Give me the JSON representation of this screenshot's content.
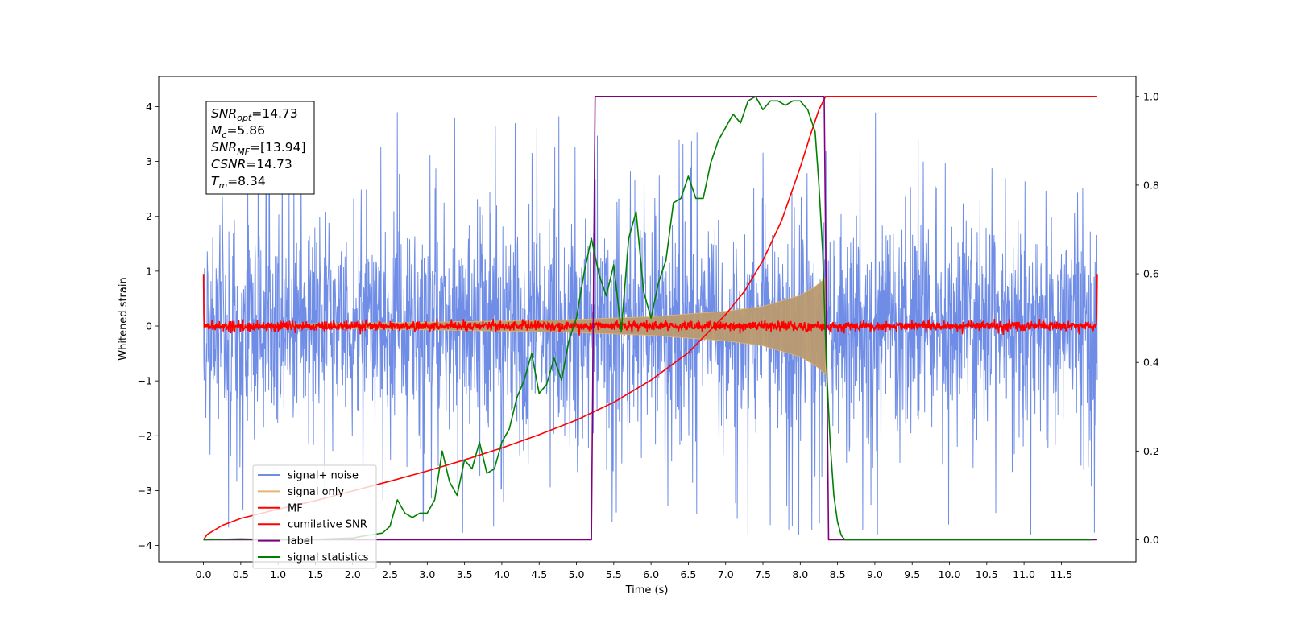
{
  "chart_data": {
    "type": "line",
    "title": "",
    "xlabel": "Time (s)",
    "ylabel": "Whitened strain",
    "ylabel_right": "",
    "xlim": [
      -0.6,
      12.5
    ],
    "ylim": [
      -4.3,
      4.55
    ],
    "ylim_right": [
      -0.05,
      1.045
    ],
    "x_ticks": [
      0.0,
      0.5,
      1.0,
      1.5,
      2.0,
      2.5,
      3.0,
      3.5,
      4.0,
      4.5,
      5.0,
      5.5,
      6.0,
      6.5,
      7.0,
      7.5,
      8.0,
      8.5,
      9.0,
      9.5,
      10.0,
      10.5,
      11.0,
      11.5
    ],
    "x_tick_labels": [
      "0.0",
      "0.5",
      "1.0",
      "1.5",
      "2.0",
      "2.5",
      "3.0",
      "3.5",
      "4.0",
      "4.5",
      "5.0",
      "5.5",
      "6.0",
      "6.5",
      "7.0",
      "7.5",
      "8.0",
      "8.5",
      "9.0",
      "9.5",
      "10.0",
      "10.5",
      "11.0",
      "11.5"
    ],
    "y_ticks": [
      -4,
      -3,
      -2,
      -1,
      0,
      1,
      2,
      3,
      4
    ],
    "y_tick_labels": [
      "−4",
      "−3",
      "−2",
      "−1",
      "0",
      "1",
      "2",
      "3",
      "4"
    ],
    "y_right_ticks": [
      0.0,
      0.2,
      0.4,
      0.6,
      0.8,
      1.0
    ],
    "y_right_tick_labels": [
      "0.0",
      "0.2",
      "0.4",
      "0.6",
      "0.8",
      "1.0"
    ],
    "grid": false,
    "legend_position": "lower-left",
    "series": [
      {
        "name": "signal+ noise",
        "axis": "left",
        "color": "#6f8de6",
        "kind": "noise",
        "x_range": [
          0.0,
          11.98
        ],
        "approx_amplitude": 1.3,
        "approx_peak": 4.17
      },
      {
        "name": "signal only",
        "axis": "left",
        "color": "#e5b46e",
        "kind": "chirp",
        "x_range": [
          0.0,
          8.34
        ],
        "envelope": {
          "x": [
            0.0,
            2.0,
            4.0,
            5.0,
            6.0,
            7.0,
            7.5,
            8.0,
            8.2,
            8.34
          ],
          "y": [
            0.03,
            0.05,
            0.09,
            0.12,
            0.17,
            0.27,
            0.36,
            0.56,
            0.72,
            0.88
          ]
        }
      },
      {
        "name": "MF",
        "axis": "left",
        "color": "#ff0000",
        "kind": "noise",
        "x_range": [
          0.0,
          11.98
        ],
        "approx_amplitude": 0.1,
        "edge_value": 0.95
      },
      {
        "name": "cumilative SNR",
        "axis": "right",
        "color": "#ff0000",
        "kind": "line",
        "x": [
          0.0,
          0.05,
          0.25,
          0.5,
          1.0,
          1.5,
          2.0,
          2.5,
          3.0,
          3.5,
          4.0,
          4.5,
          5.0,
          5.5,
          6.0,
          6.5,
          7.0,
          7.25,
          7.5,
          7.75,
          8.0,
          8.15,
          8.25,
          8.34,
          8.5,
          9.0,
          10.0,
          11.0,
          11.98
        ],
        "y": [
          0.0,
          0.012,
          0.032,
          0.048,
          0.069,
          0.088,
          0.11,
          0.132,
          0.155,
          0.18,
          0.207,
          0.237,
          0.27,
          0.31,
          0.36,
          0.422,
          0.508,
          0.56,
          0.63,
          0.72,
          0.84,
          0.92,
          0.97,
          1.0,
          1.0,
          1.0,
          1.0,
          1.0,
          1.0
        ]
      },
      {
        "name": "label",
        "axis": "right",
        "color": "#800080",
        "kind": "line",
        "x": [
          0.0,
          5.2,
          5.25,
          8.32,
          8.38,
          11.98
        ],
        "y": [
          0.0,
          0.0,
          1.0,
          1.0,
          0.0,
          0.0
        ]
      },
      {
        "name": "signal statistics",
        "axis": "right",
        "color": "#008000",
        "kind": "line",
        "x": [
          0.0,
          0.5,
          1.0,
          1.5,
          2.0,
          2.2,
          2.4,
          2.5,
          2.6,
          2.7,
          2.8,
          2.9,
          3.0,
          3.1,
          3.2,
          3.3,
          3.4,
          3.5,
          3.6,
          3.7,
          3.8,
          3.9,
          4.0,
          4.1,
          4.2,
          4.3,
          4.4,
          4.5,
          4.6,
          4.7,
          4.8,
          4.9,
          5.0,
          5.1,
          5.2,
          5.3,
          5.4,
          5.5,
          5.6,
          5.7,
          5.8,
          5.9,
          6.0,
          6.1,
          6.2,
          6.3,
          6.4,
          6.5,
          6.6,
          6.7,
          6.8,
          6.9,
          7.0,
          7.1,
          7.2,
          7.3,
          7.4,
          7.5,
          7.6,
          7.7,
          7.8,
          7.9,
          8.0,
          8.1,
          8.2,
          8.25,
          8.3,
          8.35,
          8.4,
          8.45,
          8.5,
          8.55,
          8.6,
          8.7,
          9.0,
          10.0,
          11.0,
          11.9
        ],
        "y": [
          0.0,
          0.002,
          0.0,
          0.001,
          0.004,
          0.01,
          0.015,
          0.03,
          0.09,
          0.06,
          0.05,
          0.06,
          0.06,
          0.09,
          0.2,
          0.13,
          0.1,
          0.18,
          0.16,
          0.22,
          0.15,
          0.16,
          0.22,
          0.25,
          0.32,
          0.36,
          0.42,
          0.33,
          0.35,
          0.41,
          0.36,
          0.45,
          0.5,
          0.6,
          0.68,
          0.6,
          0.55,
          0.62,
          0.47,
          0.68,
          0.74,
          0.56,
          0.5,
          0.58,
          0.63,
          0.76,
          0.77,
          0.82,
          0.77,
          0.77,
          0.85,
          0.9,
          0.93,
          0.96,
          0.94,
          0.99,
          1.0,
          0.97,
          0.99,
          0.99,
          0.98,
          0.99,
          0.99,
          0.97,
          0.92,
          0.8,
          0.65,
          0.4,
          0.22,
          0.1,
          0.04,
          0.01,
          0.0,
          0.0,
          0.0,
          0.0,
          0.0,
          0.0
        ]
      }
    ],
    "info_box": [
      {
        "prefix": "SNR",
        "sub": "opt",
        "value": "=14.73"
      },
      {
        "prefix": "M",
        "sub": "c",
        "value": "=5.86"
      },
      {
        "prefix": "SNR",
        "sub": "MF",
        "value": "=[13.94]"
      },
      {
        "prefix": "CSNR",
        "sub": "",
        "value": "=14.73"
      },
      {
        "prefix": "T",
        "sub": "m",
        "value": "=8.34"
      }
    ]
  }
}
